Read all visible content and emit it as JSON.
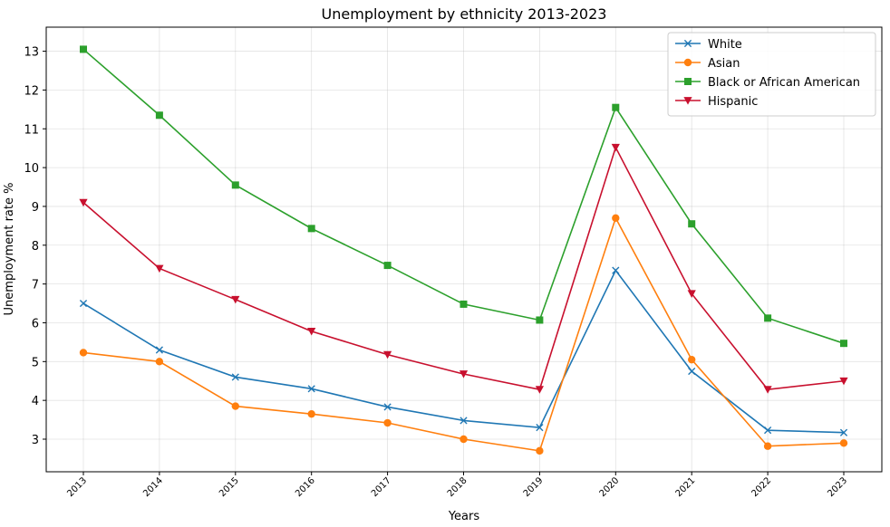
{
  "chart_data": {
    "type": "line",
    "title": "Unemployment by ethnicity 2013-2023",
    "xlabel": "Years",
    "ylabel": "Unemployment rate %",
    "x": [
      "2013",
      "2014",
      "2015",
      "2016",
      "2017",
      "2018",
      "2019",
      "2020",
      "2021",
      "2022",
      "2023"
    ],
    "yticks": [
      3,
      4,
      5,
      6,
      7,
      8,
      9,
      10,
      11,
      12,
      13
    ],
    "ylim": [
      2.16,
      13.62
    ],
    "grid": true,
    "legend_position": "top-right",
    "series": [
      {
        "name": "White",
        "color": "#1f77b4",
        "marker": "x",
        "values": [
          6.5,
          5.3,
          4.6,
          4.3,
          3.83,
          3.48,
          3.3,
          7.35,
          4.75,
          3.23,
          3.17
        ]
      },
      {
        "name": "Asian",
        "color": "#ff7f0e",
        "marker": "circle",
        "values": [
          5.23,
          5.0,
          3.85,
          3.65,
          3.42,
          3.0,
          2.7,
          8.7,
          5.05,
          2.82,
          2.9
        ]
      },
      {
        "name": "Black or African American",
        "color": "#2ca02c",
        "marker": "square",
        "values": [
          13.05,
          11.35,
          9.55,
          8.43,
          7.48,
          6.48,
          6.07,
          11.55,
          8.55,
          6.12,
          5.47
        ]
      },
      {
        "name": "Hispanic",
        "color": "#c8102e",
        "marker": "triangle-down",
        "values": [
          9.1,
          7.4,
          6.6,
          5.78,
          5.18,
          4.68,
          4.28,
          10.52,
          6.75,
          4.28,
          4.5
        ]
      }
    ]
  }
}
